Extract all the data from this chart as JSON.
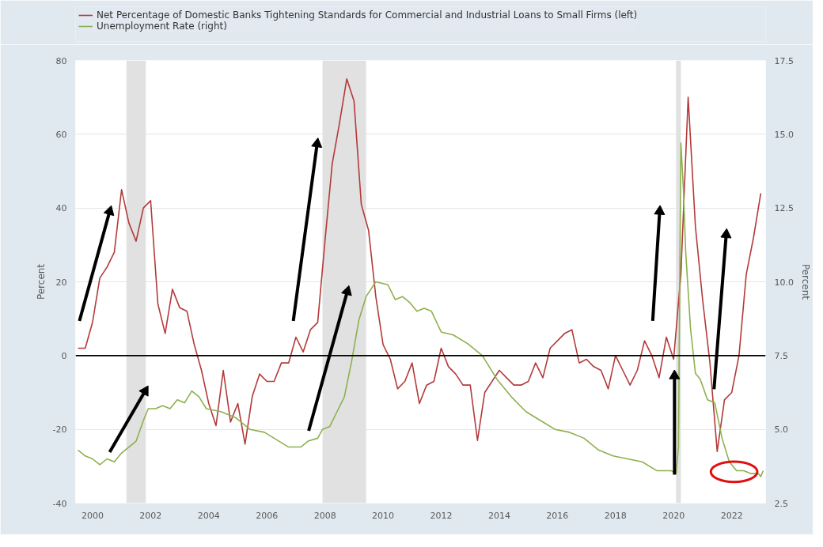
{
  "chart_data": {
    "type": "line",
    "ylabel": "Percent",
    "y2label": "Percent",
    "xlim": [
      "1999-06",
      "2023-03"
    ],
    "xticks": [
      "2000",
      "2002",
      "2004",
      "2006",
      "2008",
      "2010",
      "2012",
      "2014",
      "2016",
      "2018",
      "2020",
      "2022"
    ],
    "ylim": [
      -40,
      80
    ],
    "yticks": [
      -40,
      -20,
      0,
      20,
      40,
      60,
      80
    ],
    "y2lim": [
      2.5,
      17.5
    ],
    "y2ticks": [
      {
        "value": 2.5,
        "label": "2.5"
      },
      {
        "value": 5,
        "label": "5.0"
      },
      {
        "value": 7.5,
        "label": "7.5"
      },
      {
        "value": 10,
        "label": "10.0"
      },
      {
        "value": 12.5,
        "label": "12.5"
      },
      {
        "value": 15,
        "label": "15.0"
      },
      {
        "value": 17.5,
        "label": "17.5"
      }
    ],
    "grid": "y",
    "legend": "top",
    "line_style": "solid",
    "marker": "none",
    "ref_lines": [
      {
        "axis": "y",
        "value": 0,
        "label": null,
        "color": "#000000"
      }
    ],
    "bands": [
      {
        "axis": "x",
        "from": "2001-03",
        "to": "2001-11",
        "label": null,
        "color": "#e1e1e1"
      },
      {
        "axis": "x",
        "from": "2007-12",
        "to": "2009-06",
        "label": null,
        "color": "#e1e1e1"
      },
      {
        "axis": "x",
        "from": "2020-02",
        "to": "2020-04",
        "label": null,
        "color": "#e1e1e1"
      }
    ],
    "series": [
      {
        "name": "Net Percentage of Domestic Banks Tightening Standards for Commercial and Industrial Loans to Small Firms (left)",
        "color": "#b33a3a",
        "x": [
          "1999-07",
          "1999-10",
          "2000-01",
          "2000-04",
          "2000-07",
          "2000-10",
          "2001-01",
          "2001-04",
          "2001-07",
          "2001-10",
          "2002-01",
          "2002-04",
          "2002-07",
          "2002-10",
          "2003-01",
          "2003-04",
          "2003-07",
          "2003-10",
          "2004-01",
          "2004-04",
          "2004-07",
          "2004-10",
          "2005-01",
          "2005-04",
          "2005-07",
          "2005-10",
          "2006-01",
          "2006-04",
          "2006-07",
          "2006-10",
          "2007-01",
          "2007-04",
          "2007-07",
          "2007-10",
          "2008-01",
          "2008-04",
          "2008-07",
          "2008-10",
          "2009-01",
          "2009-04",
          "2009-07",
          "2009-10",
          "2010-01",
          "2010-04",
          "2010-07",
          "2010-10",
          "2011-01",
          "2011-04",
          "2011-07",
          "2011-10",
          "2012-01",
          "2012-04",
          "2012-07",
          "2012-10",
          "2013-01",
          "2013-04",
          "2013-07",
          "2013-10",
          "2014-01",
          "2014-04",
          "2014-07",
          "2014-10",
          "2015-01",
          "2015-04",
          "2015-07",
          "2015-10",
          "2016-01",
          "2016-04",
          "2016-07",
          "2016-10",
          "2017-01",
          "2017-04",
          "2017-07",
          "2017-10",
          "2018-01",
          "2018-04",
          "2018-07",
          "2018-10",
          "2019-01",
          "2019-04",
          "2019-07",
          "2019-10",
          "2020-01",
          "2020-04",
          "2020-07",
          "2020-10",
          "2021-01",
          "2021-04",
          "2021-07",
          "2021-10",
          "2022-01",
          "2022-04",
          "2022-07",
          "2022-10",
          "2023-01"
        ],
        "values": [
          2,
          2,
          9,
          21,
          24,
          28,
          45,
          36,
          31,
          40,
          42,
          14,
          6,
          18,
          13,
          12,
          3,
          -4,
          -13,
          -19,
          -4,
          -18,
          -13,
          -24,
          -11,
          -5,
          -7,
          -7,
          -2,
          -2,
          5,
          1,
          7,
          9,
          31,
          52,
          63,
          75,
          69,
          41,
          34,
          16,
          3,
          -1,
          -9,
          -7,
          -2,
          -13,
          -8,
          -7,
          2,
          -3,
          -5,
          -8,
          -8,
          -23,
          -10,
          -7,
          -4,
          -6,
          -8,
          -8,
          -7,
          -2,
          -6,
          2,
          4,
          6,
          7,
          -2,
          -1,
          -3,
          -4,
          -9,
          0,
          -4,
          -8,
          -4,
          4,
          0,
          -6,
          5,
          -1,
          22,
          70,
          35,
          15,
          -2,
          -26,
          -12,
          -10,
          0,
          22,
          32,
          44
        ]
      },
      {
        "name": "Unemployment Rate (right)",
        "color": "#8db04e",
        "axis": "y2",
        "x": [
          "1999-07",
          "1999-10",
          "2000-01",
          "2000-04",
          "2000-07",
          "2000-10",
          "2001-01",
          "2001-04",
          "2001-07",
          "2001-10",
          "2001-12",
          "2002-03",
          "2002-06",
          "2002-09",
          "2002-12",
          "2003-03",
          "2003-06",
          "2003-09",
          "2003-12",
          "2004-06",
          "2004-12",
          "2005-06",
          "2005-12",
          "2006-06",
          "2006-10",
          "2007-03",
          "2007-06",
          "2007-10",
          "2007-12",
          "2008-03",
          "2008-06",
          "2008-09",
          "2008-12",
          "2009-03",
          "2009-06",
          "2009-10",
          "2010-03",
          "2010-06",
          "2010-09",
          "2010-12",
          "2011-03",
          "2011-06",
          "2011-09",
          "2012-01",
          "2012-06",
          "2012-12",
          "2013-06",
          "2013-12",
          "2014-06",
          "2014-12",
          "2015-06",
          "2015-12",
          "2016-06",
          "2016-12",
          "2017-06",
          "2017-12",
          "2018-06",
          "2018-12",
          "2019-06",
          "2019-12",
          "2020-02",
          "2020-03",
          "2020-04",
          "2020-05",
          "2020-06",
          "2020-08",
          "2020-10",
          "2020-12",
          "2021-03",
          "2021-06",
          "2021-09",
          "2021-12",
          "2022-03",
          "2022-06",
          "2022-09",
          "2022-12",
          "2023-01",
          "2023-02"
        ],
        "values": [
          4.3,
          4.1,
          4.0,
          3.8,
          4.0,
          3.9,
          4.2,
          4.4,
          4.6,
          5.3,
          5.7,
          5.7,
          5.8,
          5.7,
          6.0,
          5.9,
          6.3,
          6.1,
          5.7,
          5.6,
          5.4,
          5.0,
          4.9,
          4.6,
          4.4,
          4.4,
          4.6,
          4.7,
          5.0,
          5.1,
          5.6,
          6.1,
          7.3,
          8.7,
          9.5,
          10.0,
          9.9,
          9.4,
          9.5,
          9.3,
          9.0,
          9.1,
          9.0,
          8.3,
          8.2,
          7.9,
          7.5,
          6.7,
          6.1,
          5.6,
          5.3,
          5.0,
          4.9,
          4.7,
          4.3,
          4.1,
          4.0,
          3.9,
          3.6,
          3.6,
          3.5,
          4.4,
          14.7,
          13.2,
          11.0,
          8.4,
          6.9,
          6.7,
          6.0,
          5.9,
          4.7,
          3.9,
          3.6,
          3.6,
          3.5,
          3.5,
          3.4,
          3.6
        ]
      }
    ]
  }
}
